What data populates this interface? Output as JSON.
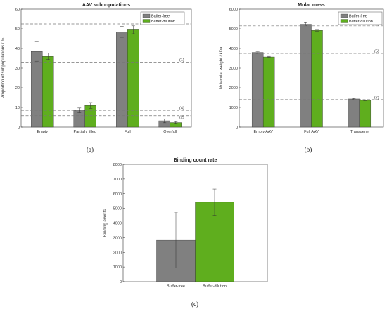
{
  "colors": {
    "buffer_free": "#808080",
    "buffer_dilution": "#5fae1e",
    "reference_line": "#777777"
  },
  "chart_data": [
    {
      "id": "a",
      "type": "bar",
      "title": "AAV subpopulations",
      "caption": "(a)",
      "xlabel": "",
      "ylabel": "Proportion of subpopulations / %",
      "ylim": [
        0,
        60
      ],
      "yticks": [
        0,
        10,
        20,
        30,
        40,
        50,
        60
      ],
      "ytick_labels": [
        "0",
        "10",
        "20",
        "30",
        "40",
        "50",
        "60"
      ],
      "categories": [
        "Empty",
        "Partially filled",
        "Full",
        "Overfull"
      ],
      "series": [
        {
          "name": "Buffer-free",
          "values": [
            38.5,
            8.5,
            48.5,
            3.2
          ],
          "errors": [
            5.0,
            1.2,
            2.8,
            1.0
          ]
        },
        {
          "name": "Buffer-dilution",
          "values": [
            36.0,
            11.0,
            49.5,
            2.3
          ],
          "errors": [
            1.6,
            1.5,
            2.0,
            0.4
          ]
        }
      ],
      "reference_lines": [
        {
          "label": "(1)",
          "value": 33
        },
        {
          "label": "(2)",
          "value": 5.8
        },
        {
          "label": "(3)",
          "value": 52.5
        },
        {
          "label": "(4)",
          "value": 8.5
        }
      ],
      "legend_position": "top-right",
      "grid": false
    },
    {
      "id": "b",
      "type": "bar",
      "title": "Molar mass",
      "caption": "(b)",
      "xlabel": "",
      "ylabel": "Molecular weight / kDa",
      "ylim": [
        0,
        6000
      ],
      "yticks": [
        0,
        1000,
        2000,
        3000,
        4000,
        5000,
        6000
      ],
      "ytick_labels": [
        "0",
        "1000",
        "2000",
        "3000",
        "4000",
        "5000",
        "6000"
      ],
      "categories": [
        "Empty AAV",
        "Full AAV",
        "Transgene"
      ],
      "series": [
        {
          "name": "Buffer-free",
          "values": [
            3800,
            5230,
            1430
          ],
          "errors": [
            50,
            80,
            30
          ]
        },
        {
          "name": "Buffer-dilution",
          "values": [
            3570,
            4920,
            1360
          ],
          "errors": [
            30,
            40,
            20
          ]
        }
      ],
      "reference_lines": [
        {
          "label": "(5)",
          "value": 3750
        },
        {
          "label": "(6)",
          "value": 5150
        },
        {
          "label": "(7)",
          "value": 1400
        }
      ],
      "legend_position": "top-right",
      "grid": false
    },
    {
      "id": "c",
      "type": "bar",
      "title": "Binding count rate",
      "caption": "(c)",
      "xlabel": "",
      "ylabel": "Binding events",
      "ylim": [
        0,
        8000
      ],
      "yticks": [
        0,
        1000,
        2000,
        3000,
        4000,
        5000,
        6000,
        7000,
        8000
      ],
      "ytick_labels": [
        "0",
        "1000",
        "2000",
        "3000",
        "4000",
        "5000",
        "6000",
        "7000",
        "8000"
      ],
      "categories": [
        "Buffer-free",
        "Buffer-dilution"
      ],
      "values": [
        2820,
        5420
      ],
      "errors": [
        1880,
        900
      ],
      "grid": false
    }
  ]
}
